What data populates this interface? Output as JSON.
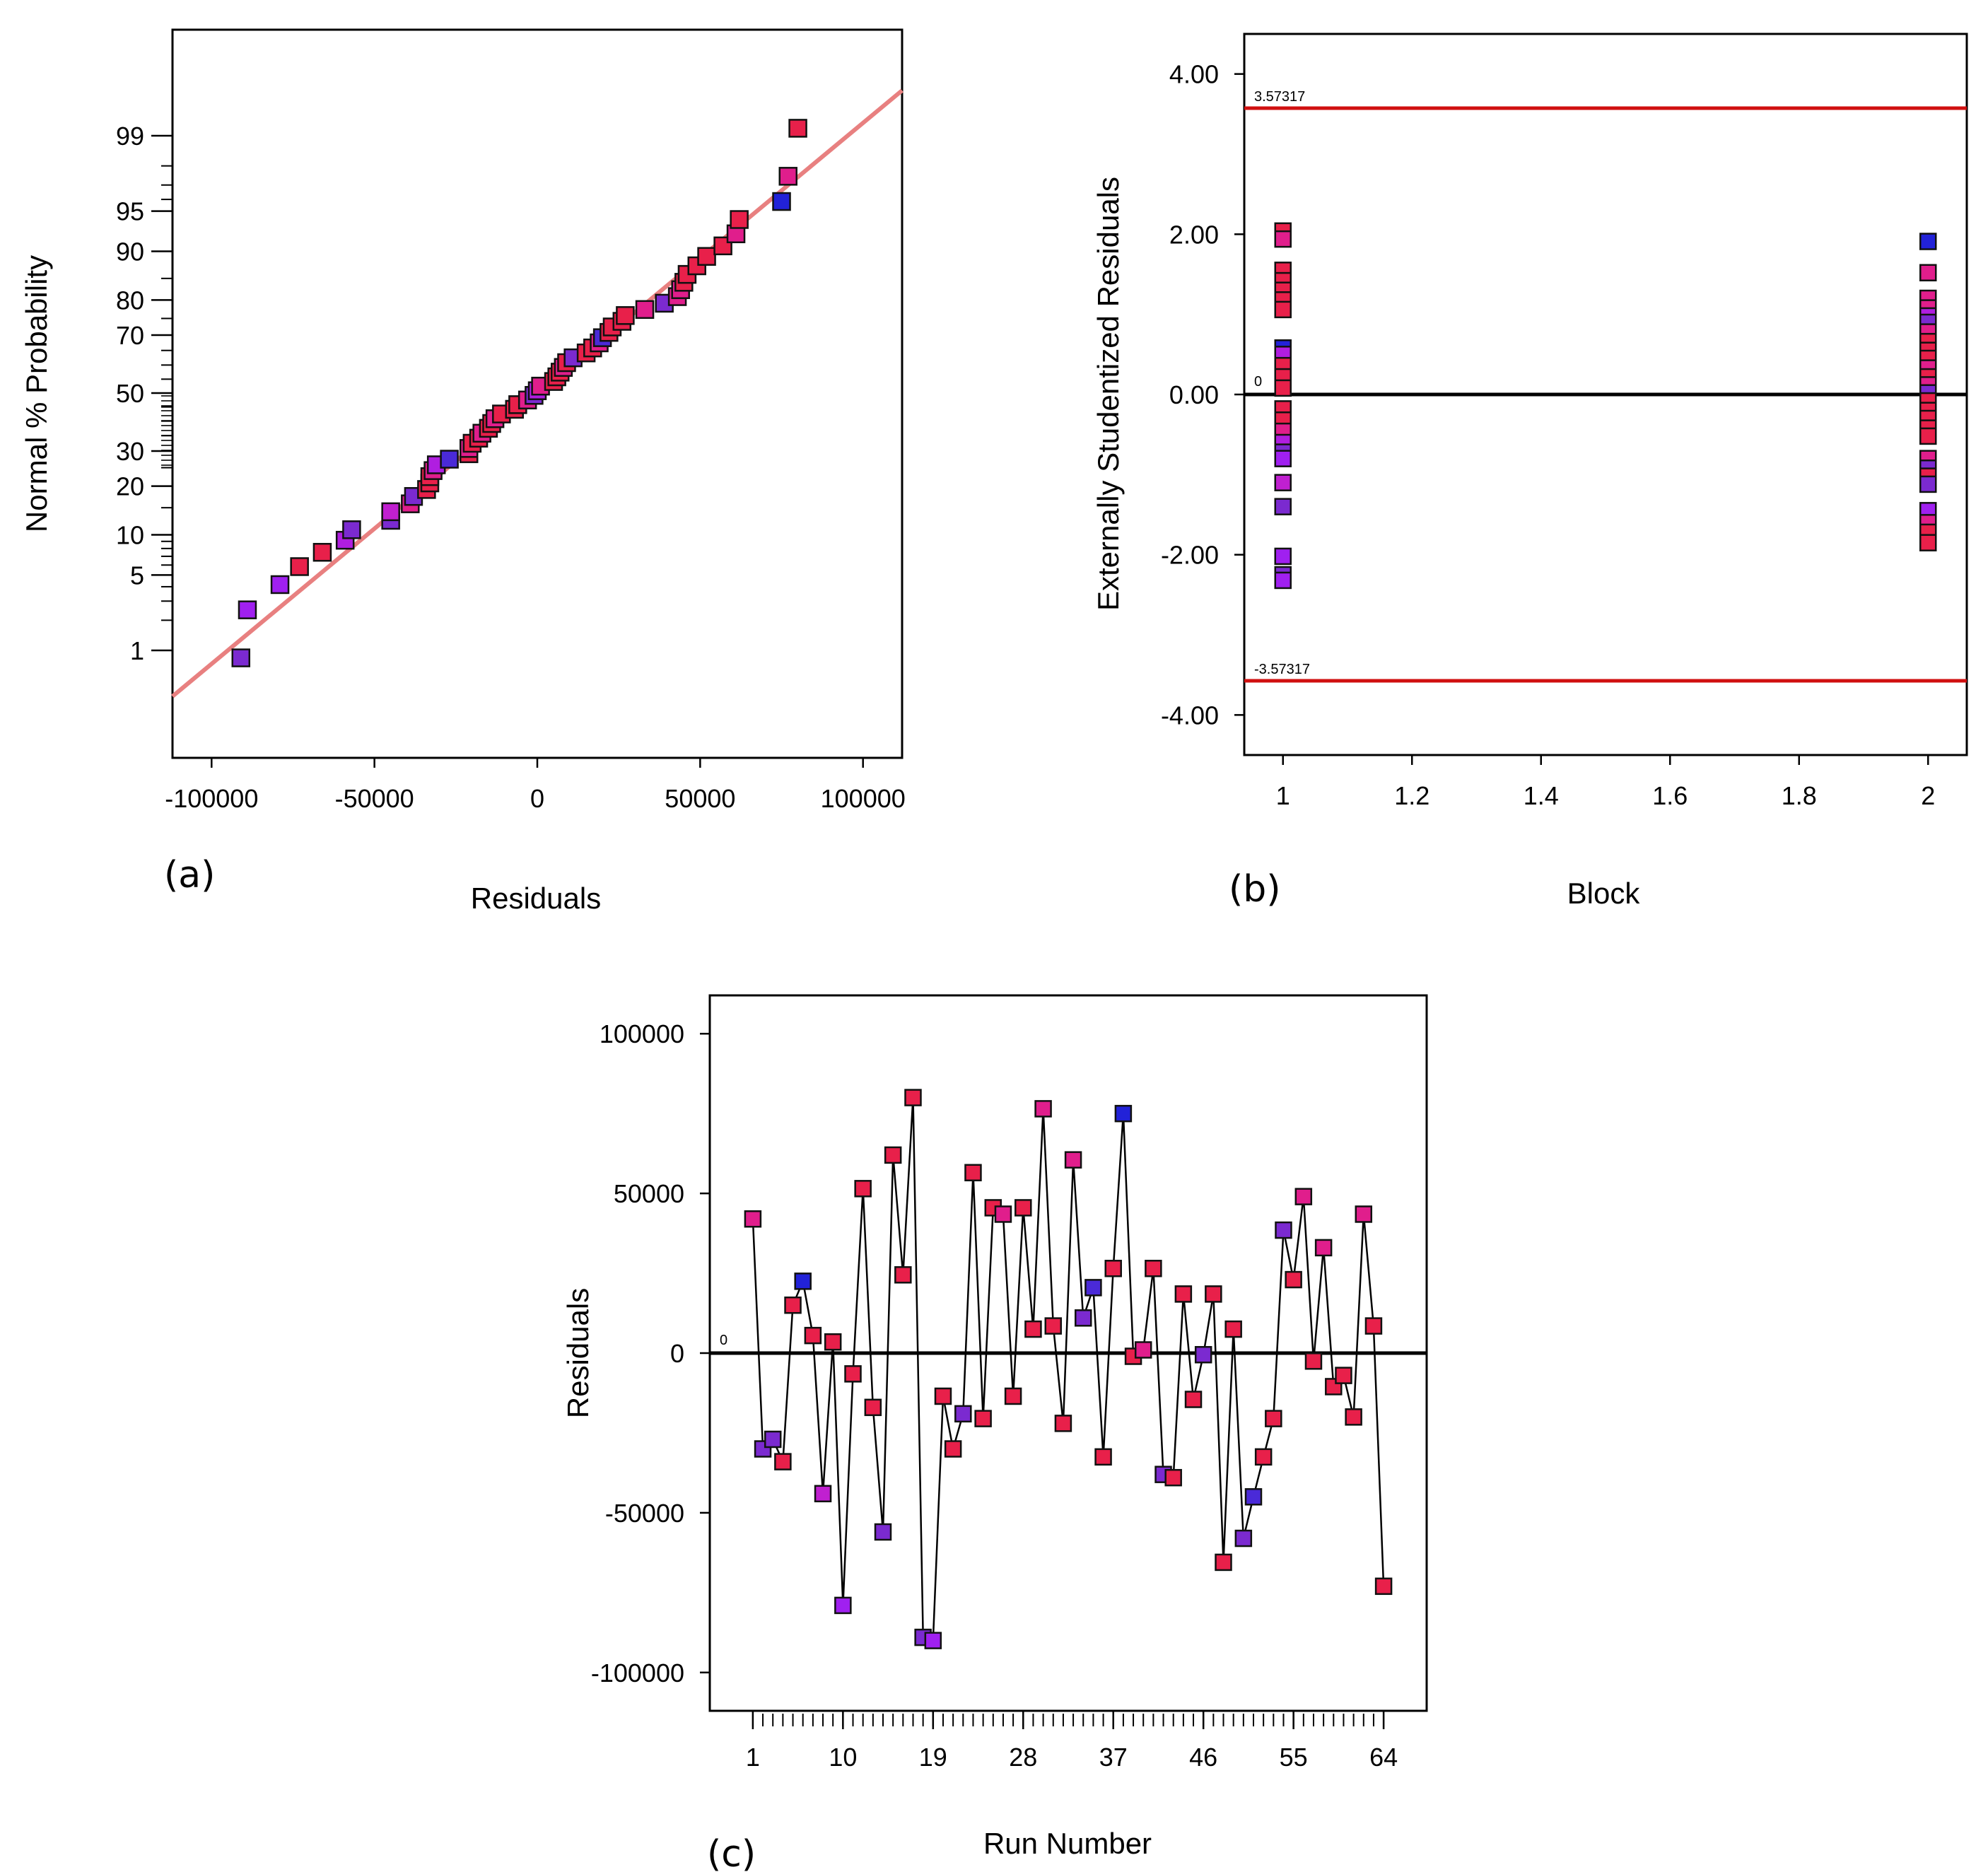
{
  "chart_data": [
    {
      "panel": "(a)",
      "type": "scatter",
      "subtype": "normal-probability",
      "xlabel": "Residuals",
      "ylabel": "Normal % Probability",
      "xlim": [
        -112000,
        112000
      ],
      "x_ticks": [
        -100000,
        -50000,
        0,
        50000,
        100000
      ],
      "x_tick_labels": [
        "-100000",
        "-50000",
        "0",
        "50000",
        "100000"
      ],
      "y_ticks": [
        1,
        5,
        10,
        20,
        30,
        50,
        70,
        80,
        90,
        95,
        99
      ],
      "y_tick_labels": [
        "1",
        "5",
        "10",
        "20",
        "30",
        "50",
        "70",
        "80",
        "90",
        "95",
        "99"
      ],
      "reference_line": {
        "color": "#e88080"
      },
      "points": [
        {
          "x": -91000,
          "color": "#7b2ad0"
        },
        {
          "x": -89000,
          "color": "#a020f0"
        },
        {
          "x": -79000,
          "color": "#a020f0"
        },
        {
          "x": -73000,
          "color": "#e8204a"
        },
        {
          "x": -66000,
          "color": "#e8204a"
        },
        {
          "x": -59000,
          "color": "#b01ee0"
        },
        {
          "x": -57000,
          "color": "#7b2ad0"
        },
        {
          "x": -45000,
          "color": "#7b2ad0"
        },
        {
          "x": -45000,
          "color": "#c020d0"
        },
        {
          "x": -39000,
          "color": "#e01e8c"
        },
        {
          "x": -38000,
          "color": "#7b2ad0"
        },
        {
          "x": -34000,
          "color": "#e8204a"
        },
        {
          "x": -33000,
          "color": "#e8204a"
        },
        {
          "x": -33000,
          "color": "#e8204a"
        },
        {
          "x": -32000,
          "color": "#e01e8c"
        },
        {
          "x": -31000,
          "color": "#b01ee0"
        },
        {
          "x": -27000,
          "color": "#4a2ad8"
        },
        {
          "x": -21000,
          "color": "#e8204a"
        },
        {
          "x": -21000,
          "color": "#e01e8c"
        },
        {
          "x": -20000,
          "color": "#e8204a"
        },
        {
          "x": -18000,
          "color": "#e8204a"
        },
        {
          "x": -17000,
          "color": "#e01e8c"
        },
        {
          "x": -15000,
          "color": "#e8204a"
        },
        {
          "x": -14000,
          "color": "#e8204a"
        },
        {
          "x": -13000,
          "color": "#e01e8c"
        },
        {
          "x": -11000,
          "color": "#e8204a"
        },
        {
          "x": -7000,
          "color": "#e8204a"
        },
        {
          "x": -6000,
          "color": "#e8204a"
        },
        {
          "x": -3000,
          "color": "#e01e8c"
        },
        {
          "x": -1000,
          "color": "#7b2ad0"
        },
        {
          "x": 0,
          "color": "#b01ee0"
        },
        {
          "x": 1000,
          "color": "#e01e8c"
        },
        {
          "x": 5000,
          "color": "#e8204a"
        },
        {
          "x": 6000,
          "color": "#e8204a"
        },
        {
          "x": 7000,
          "color": "#e8204a"
        },
        {
          "x": 8000,
          "color": "#e01e8c"
        },
        {
          "x": 9000,
          "color": "#e8204a"
        },
        {
          "x": 11000,
          "color": "#7b2ad0"
        },
        {
          "x": 15000,
          "color": "#e8204a"
        },
        {
          "x": 17000,
          "color": "#e8204a"
        },
        {
          "x": 19000,
          "color": "#e01e8c"
        },
        {
          "x": 20000,
          "color": "#4a2ad8"
        },
        {
          "x": 22000,
          "color": "#e8204a"
        },
        {
          "x": 23000,
          "color": "#e8204a"
        },
        {
          "x": 26000,
          "color": "#e8204a"
        },
        {
          "x": 27000,
          "color": "#e8204a"
        },
        {
          "x": 33000,
          "color": "#e01e8c"
        },
        {
          "x": 39000,
          "color": "#7b2ad0"
        },
        {
          "x": 43000,
          "color": "#e01e8c"
        },
        {
          "x": 44000,
          "color": "#e01e8c"
        },
        {
          "x": 45000,
          "color": "#e8204a"
        },
        {
          "x": 46000,
          "color": "#e8204a"
        },
        {
          "x": 49000,
          "color": "#e8204a"
        },
        {
          "x": 52000,
          "color": "#e8204a"
        },
        {
          "x": 57000,
          "color": "#e8204a"
        },
        {
          "x": 61000,
          "color": "#e01e8c"
        },
        {
          "x": 62000,
          "color": "#e8204a"
        },
        {
          "x": 75000,
          "color": "#2222d8"
        },
        {
          "x": 77000,
          "color": "#e01e8c"
        },
        {
          "x": 80000,
          "color": "#e8204a"
        }
      ]
    },
    {
      "panel": "(b)",
      "type": "scatter",
      "xlabel": "Block",
      "ylabel": "Externally Studentized Residuals",
      "xlim": [
        0.94,
        2.06
      ],
      "ylim": [
        -4.5,
        4.5
      ],
      "x_ticks": [
        1,
        1.2,
        1.4,
        1.6,
        1.8,
        2
      ],
      "x_tick_labels": [
        "1",
        "1.2",
        "1.4",
        "1.6",
        "1.8",
        "2"
      ],
      "y_ticks": [
        -4,
        -2,
        0,
        2,
        4
      ],
      "y_tick_labels": [
        "-4.00",
        "-2.00",
        "0.00",
        "2.00",
        "4.00"
      ],
      "limits": {
        "upper": 3.57317,
        "lower": -3.57317,
        "upper_label": "3.57317",
        "lower_label": "-3.57317",
        "color": "#d01010"
      },
      "zero_label": "0",
      "points": [
        {
          "x": 1,
          "y": 2.04,
          "color": "#e8204a"
        },
        {
          "x": 1,
          "y": 1.94,
          "color": "#e01e8c"
        },
        {
          "x": 1,
          "y": 1.55,
          "color": "#e8204a"
        },
        {
          "x": 1,
          "y": 1.42,
          "color": "#e8204a"
        },
        {
          "x": 1,
          "y": 1.3,
          "color": "#e8204a"
        },
        {
          "x": 1,
          "y": 1.18,
          "color": "#e8204a"
        },
        {
          "x": 1,
          "y": 1.06,
          "color": "#e8204a"
        },
        {
          "x": 1,
          "y": 0.58,
          "color": "#2222d8"
        },
        {
          "x": 1,
          "y": 0.5,
          "color": "#b01ee0"
        },
        {
          "x": 1,
          "y": 0.36,
          "color": "#e8204a"
        },
        {
          "x": 1,
          "y": 0.22,
          "color": "#e8204a"
        },
        {
          "x": 1,
          "y": 0.08,
          "color": "#e8204a"
        },
        {
          "x": 1,
          "y": -0.18,
          "color": "#e8204a"
        },
        {
          "x": 1,
          "y": -0.32,
          "color": "#e8204a"
        },
        {
          "x": 1,
          "y": -0.46,
          "color": "#e01e8c"
        },
        {
          "x": 1,
          "y": -0.6,
          "color": "#b01ee0"
        },
        {
          "x": 1,
          "y": -0.72,
          "color": "#7b2ad0"
        },
        {
          "x": 1,
          "y": -0.8,
          "color": "#a020f0"
        },
        {
          "x": 1,
          "y": -1.1,
          "color": "#c020d0"
        },
        {
          "x": 1,
          "y": -1.4,
          "color": "#7b2ad0"
        },
        {
          "x": 1,
          "y": -2.02,
          "color": "#a020f0"
        },
        {
          "x": 1,
          "y": -2.25,
          "color": "#7b2ad0"
        },
        {
          "x": 1,
          "y": -2.32,
          "color": "#a020f0"
        },
        {
          "x": 2,
          "y": 1.91,
          "color": "#2222d8"
        },
        {
          "x": 2,
          "y": 1.52,
          "color": "#e01e8c"
        },
        {
          "x": 2,
          "y": 1.2,
          "color": "#e01e8c"
        },
        {
          "x": 2,
          "y": 1.08,
          "color": "#e01e8c"
        },
        {
          "x": 2,
          "y": 0.98,
          "color": "#b01ee0"
        },
        {
          "x": 2,
          "y": 0.9,
          "color": "#7b2ad0"
        },
        {
          "x": 2,
          "y": 0.78,
          "color": "#e01e8c"
        },
        {
          "x": 2,
          "y": 0.66,
          "color": "#e8204a"
        },
        {
          "x": 2,
          "y": 0.55,
          "color": "#e8204a"
        },
        {
          "x": 2,
          "y": 0.45,
          "color": "#e8204a"
        },
        {
          "x": 2,
          "y": 0.33,
          "color": "#e01e8c"
        },
        {
          "x": 2,
          "y": 0.22,
          "color": "#e8204a"
        },
        {
          "x": 2,
          "y": 0.12,
          "color": "#e01e8c"
        },
        {
          "x": 2,
          "y": 0.02,
          "color": "#7b2ad0"
        },
        {
          "x": 2,
          "y": -0.08,
          "color": "#e8204a"
        },
        {
          "x": 2,
          "y": -0.2,
          "color": "#e8204a"
        },
        {
          "x": 2,
          "y": -0.3,
          "color": "#e8204a"
        },
        {
          "x": 2,
          "y": -0.42,
          "color": "#e8204a"
        },
        {
          "x": 2,
          "y": -0.52,
          "color": "#e8204a"
        },
        {
          "x": 2,
          "y": -0.8,
          "color": "#e01e8c"
        },
        {
          "x": 2,
          "y": -0.92,
          "color": "#7b2ad0"
        },
        {
          "x": 2,
          "y": -1.02,
          "color": "#e8204a"
        },
        {
          "x": 2,
          "y": -1.12,
          "color": "#7b2ad0"
        },
        {
          "x": 2,
          "y": -1.45,
          "color": "#a020f0"
        },
        {
          "x": 2,
          "y": -1.6,
          "color": "#e01e8c"
        },
        {
          "x": 2,
          "y": -1.72,
          "color": "#e8204a"
        },
        {
          "x": 2,
          "y": -1.85,
          "color": "#e8204a"
        }
      ]
    },
    {
      "panel": "(c)",
      "type": "line",
      "xlabel": "Run Number",
      "ylabel": "Residuals",
      "xlim": [
        -3.3,
        68.3
      ],
      "ylim": [
        -112000,
        112000
      ],
      "x_ticks": [
        1,
        10,
        19,
        28,
        37,
        46,
        55,
        64
      ],
      "x_tick_labels": [
        "1",
        "10",
        "19",
        "28",
        "37",
        "46",
        "55",
        "64"
      ],
      "y_ticks": [
        -100000,
        -50000,
        0,
        50000,
        100000
      ],
      "y_tick_labels": [
        "-100000",
        "-50000",
        "0",
        "50000",
        "100000"
      ],
      "zero_label": "0",
      "x": [
        1,
        2,
        3,
        4,
        5,
        6,
        7,
        8,
        9,
        10,
        11,
        12,
        13,
        14,
        15,
        16,
        17,
        18,
        19,
        20,
        21,
        22,
        23,
        24,
        25,
        26,
        27,
        28,
        29,
        30,
        31,
        32,
        33,
        34,
        35,
        36,
        37,
        38,
        39,
        40,
        41,
        42,
        43,
        44,
        45,
        46,
        47,
        48,
        49,
        50,
        51,
        52,
        53,
        54,
        55,
        56,
        57,
        58,
        59,
        60,
        61,
        62,
        63,
        64
      ],
      "values": [
        42000,
        -30000,
        -27000,
        -34000,
        15000,
        22500,
        5500,
        -44000,
        3500,
        -79000,
        -6500,
        51500,
        -17000,
        -56000,
        62000,
        24500,
        80000,
        -89000,
        -90000,
        -13500,
        -30000,
        -19000,
        56500,
        -20500,
        45500,
        43500,
        -13500,
        45500,
        7500,
        76500,
        8500,
        -22000,
        60500,
        11000,
        20500,
        -32500,
        26500,
        75000,
        -1000,
        1000,
        26500,
        -38000,
        -39000,
        18500,
        -14500,
        -500,
        18500,
        -65500,
        7500,
        -58000,
        -45000,
        -32500,
        -20500,
        38500,
        23000,
        49000,
        -2500,
        33000,
        -10500,
        -7000,
        -20000,
        43500,
        8500,
        -73000
      ],
      "colors": [
        "#e01e8c",
        "#7b2ad0",
        "#7b2ad0",
        "#e8204a",
        "#e8204a",
        "#2222d8",
        "#e8204a",
        "#c020d0",
        "#e8204a",
        "#a020f0",
        "#e8204a",
        "#e8204a",
        "#e8204a",
        "#7b2ad0",
        "#e8204a",
        "#e8204a",
        "#e8204a",
        "#7b2ad0",
        "#a020f0",
        "#e8204a",
        "#e8204a",
        "#7b2ad0",
        "#e8204a",
        "#e8204a",
        "#e8204a",
        "#e01e8c",
        "#e8204a",
        "#e8204a",
        "#e8204a",
        "#e01e8c",
        "#e8204a",
        "#e8204a",
        "#e01e8c",
        "#7b2ad0",
        "#4a2ad8",
        "#e8204a",
        "#e8204a",
        "#2222d8",
        "#e8204a",
        "#e01e8c",
        "#e8204a",
        "#7b2ad0",
        "#e8204a",
        "#e8204a",
        "#e8204a",
        "#7b2ad0",
        "#e8204a",
        "#e8204a",
        "#e8204a",
        "#7b2ad0",
        "#4a2ad8",
        "#e8204a",
        "#e8204a",
        "#7b2ad0",
        "#e8204a",
        "#e01e8c",
        "#e8204a",
        "#e01e8c",
        "#e8204a",
        "#e8204a",
        "#e8204a",
        "#e01e8c",
        "#e8204a",
        "#e8204a"
      ]
    }
  ]
}
